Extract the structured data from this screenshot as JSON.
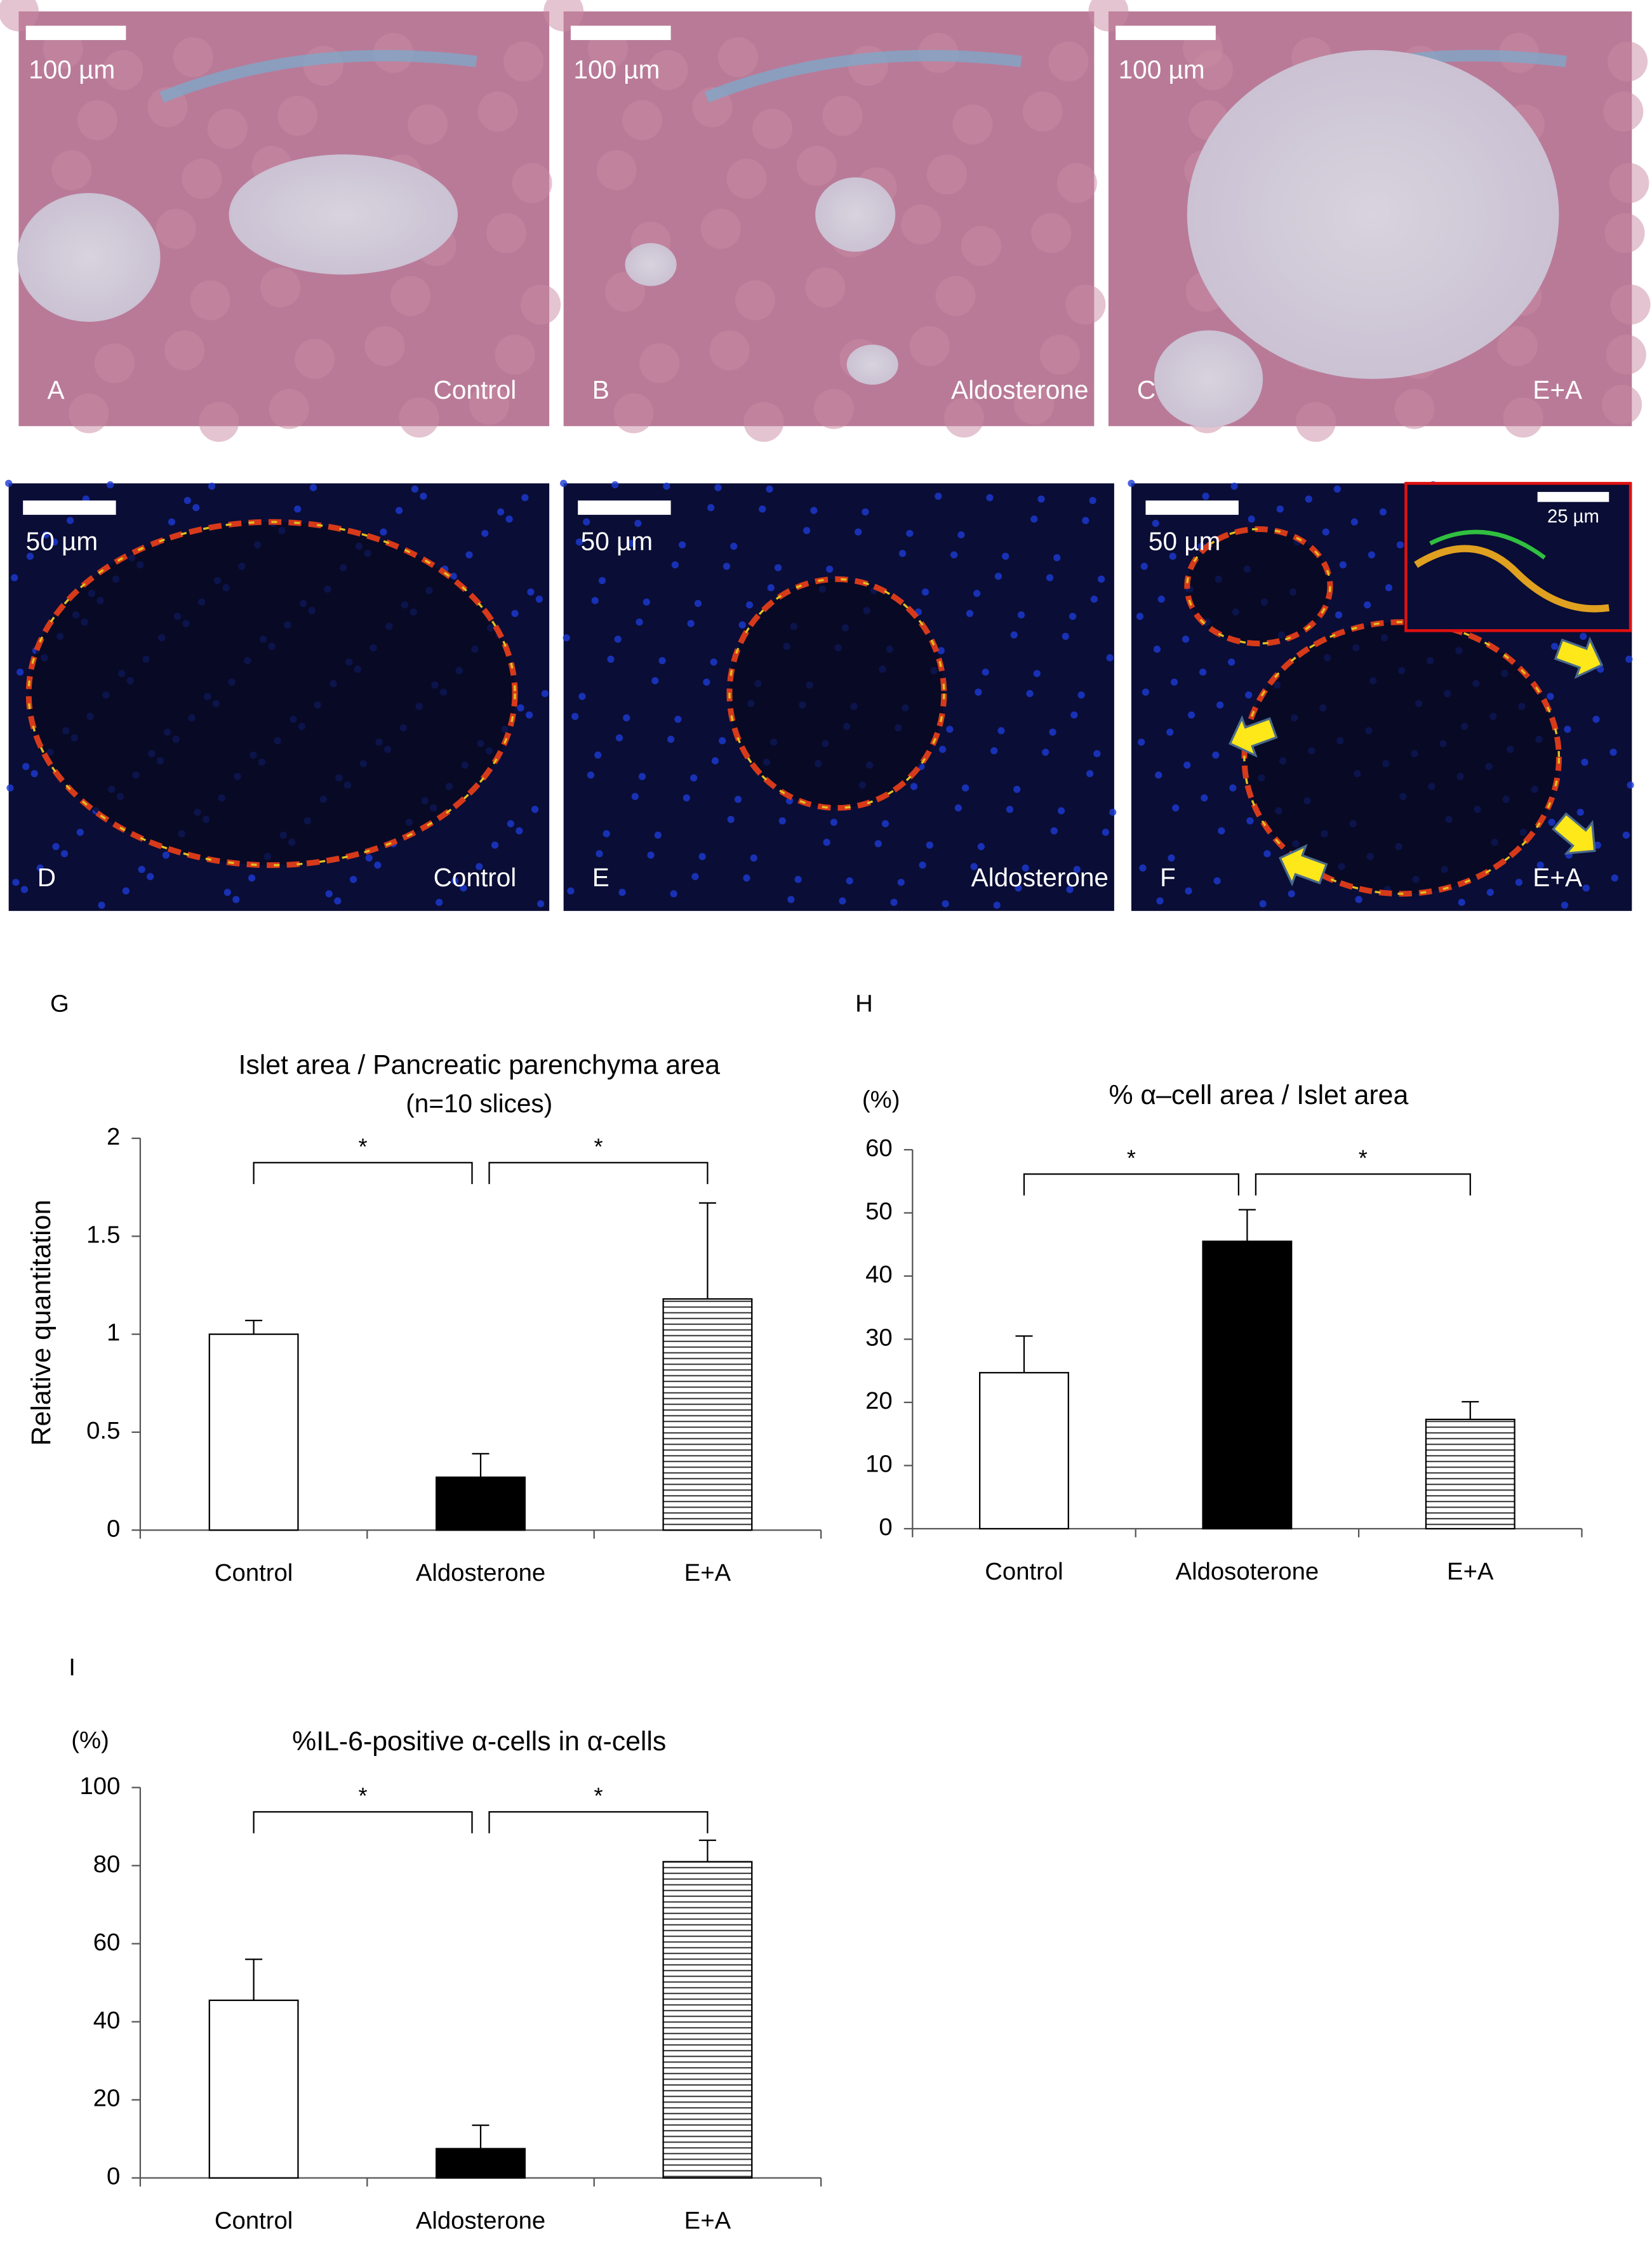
{
  "panels": [
    {
      "letter": "A",
      "label": "Control",
      "scale_bar": "100 µm"
    },
    {
      "letter": "B",
      "label": "Aldosterone",
      "scale_bar": "100 µm"
    },
    {
      "letter": "C",
      "label": "E+A",
      "scale_bar": "100 µm"
    },
    {
      "letter": "D",
      "label": "Control",
      "scale_bar": "50 µm"
    },
    {
      "letter": "E",
      "label": "Aldosterone",
      "scale_bar": "50 µm"
    },
    {
      "letter": "F",
      "label": "E+A",
      "scale_bar": "50 µm",
      "inset_scale_bar": "25 µm"
    }
  ],
  "chart_data": [
    {
      "type": "bar",
      "panel": "G",
      "title": "Islet area / Pancreatic parenchyma area",
      "subtitle": "(n=10 slices)",
      "y_label": "Relative quantitation",
      "categories": [
        "Control",
        "Aldosterone",
        "E+A"
      ],
      "values": [
        1.0,
        0.27,
        1.18
      ],
      "errors": [
        0.07,
        0.12,
        0.49
      ],
      "colors": [
        "#ffffff",
        "#000000",
        "#ffffff"
      ],
      "hatch": [
        false,
        false,
        true
      ],
      "ylim": [
        0,
        2
      ],
      "yticks": [
        0,
        0.5,
        1,
        1.5,
        2
      ],
      "annotations": [
        "*",
        "*"
      ]
    },
    {
      "type": "bar",
      "panel": "H",
      "unit": "(%)",
      "title": "% α–cell area / Islet area",
      "categories": [
        "Control",
        "Aldosoterone",
        "E+A"
      ],
      "values": [
        24.7,
        45.5,
        17.3
      ],
      "errors": [
        5.8,
        5.0,
        2.8
      ],
      "colors": [
        "#ffffff",
        "#000000",
        "#ffffff"
      ],
      "hatch": [
        false,
        false,
        true
      ],
      "ylim": [
        0,
        60
      ],
      "yticks": [
        0,
        10,
        20,
        30,
        40,
        50,
        60
      ],
      "annotations": [
        "*",
        "*"
      ]
    },
    {
      "type": "bar",
      "panel": "I",
      "unit": "(%)",
      "title": "%IL-6-positive α-cells in α-cells",
      "categories": [
        "Control",
        "Aldosterone",
        "E+A"
      ],
      "values": [
        45.5,
        7.5,
        81
      ],
      "errors": [
        10.5,
        6,
        5.5
      ],
      "colors": [
        "#ffffff",
        "#000000",
        "#ffffff"
      ],
      "hatch": [
        false,
        false,
        true
      ],
      "ylim": [
        0,
        100
      ],
      "yticks": [
        0,
        20,
        40,
        60,
        80,
        100
      ],
      "annotations": [
        "*",
        "*"
      ]
    }
  ]
}
